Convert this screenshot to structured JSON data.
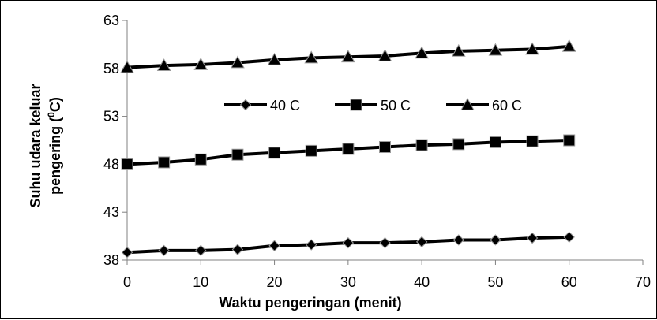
{
  "chart_data": {
    "type": "line",
    "xlabel": "Waktu pengeringan (menit)",
    "ylabel_line1": "Suhu udara keluar",
    "ylabel_line2": "pengering (",
    "ylabel_sup": "0",
    "ylabel_unit": "C)",
    "xlim": [
      0,
      70
    ],
    "ylim": [
      38,
      63
    ],
    "xticks": [
      0,
      10,
      20,
      30,
      40,
      50,
      60,
      70
    ],
    "yticks": [
      38,
      43,
      48,
      53,
      58,
      63
    ],
    "grid": false,
    "legend_position": "middle",
    "x": [
      0,
      5,
      10,
      15,
      20,
      25,
      30,
      35,
      40,
      45,
      50,
      55,
      60
    ],
    "series": [
      {
        "name": "40 C",
        "marker": "diamond",
        "values": [
          38.8,
          39.0,
          39.0,
          39.1,
          39.5,
          39.6,
          39.8,
          39.8,
          39.9,
          40.1,
          40.1,
          40.3,
          40.4
        ]
      },
      {
        "name": "50 C",
        "marker": "square",
        "values": [
          48.0,
          48.2,
          48.5,
          49.0,
          49.2,
          49.4,
          49.6,
          49.8,
          50.0,
          50.1,
          50.3,
          50.4,
          50.5
        ]
      },
      {
        "name": "60 C",
        "marker": "triangle",
        "values": [
          58.1,
          58.3,
          58.4,
          58.6,
          58.9,
          59.1,
          59.2,
          59.3,
          59.6,
          59.8,
          59.9,
          60.0,
          60.3
        ]
      }
    ]
  }
}
